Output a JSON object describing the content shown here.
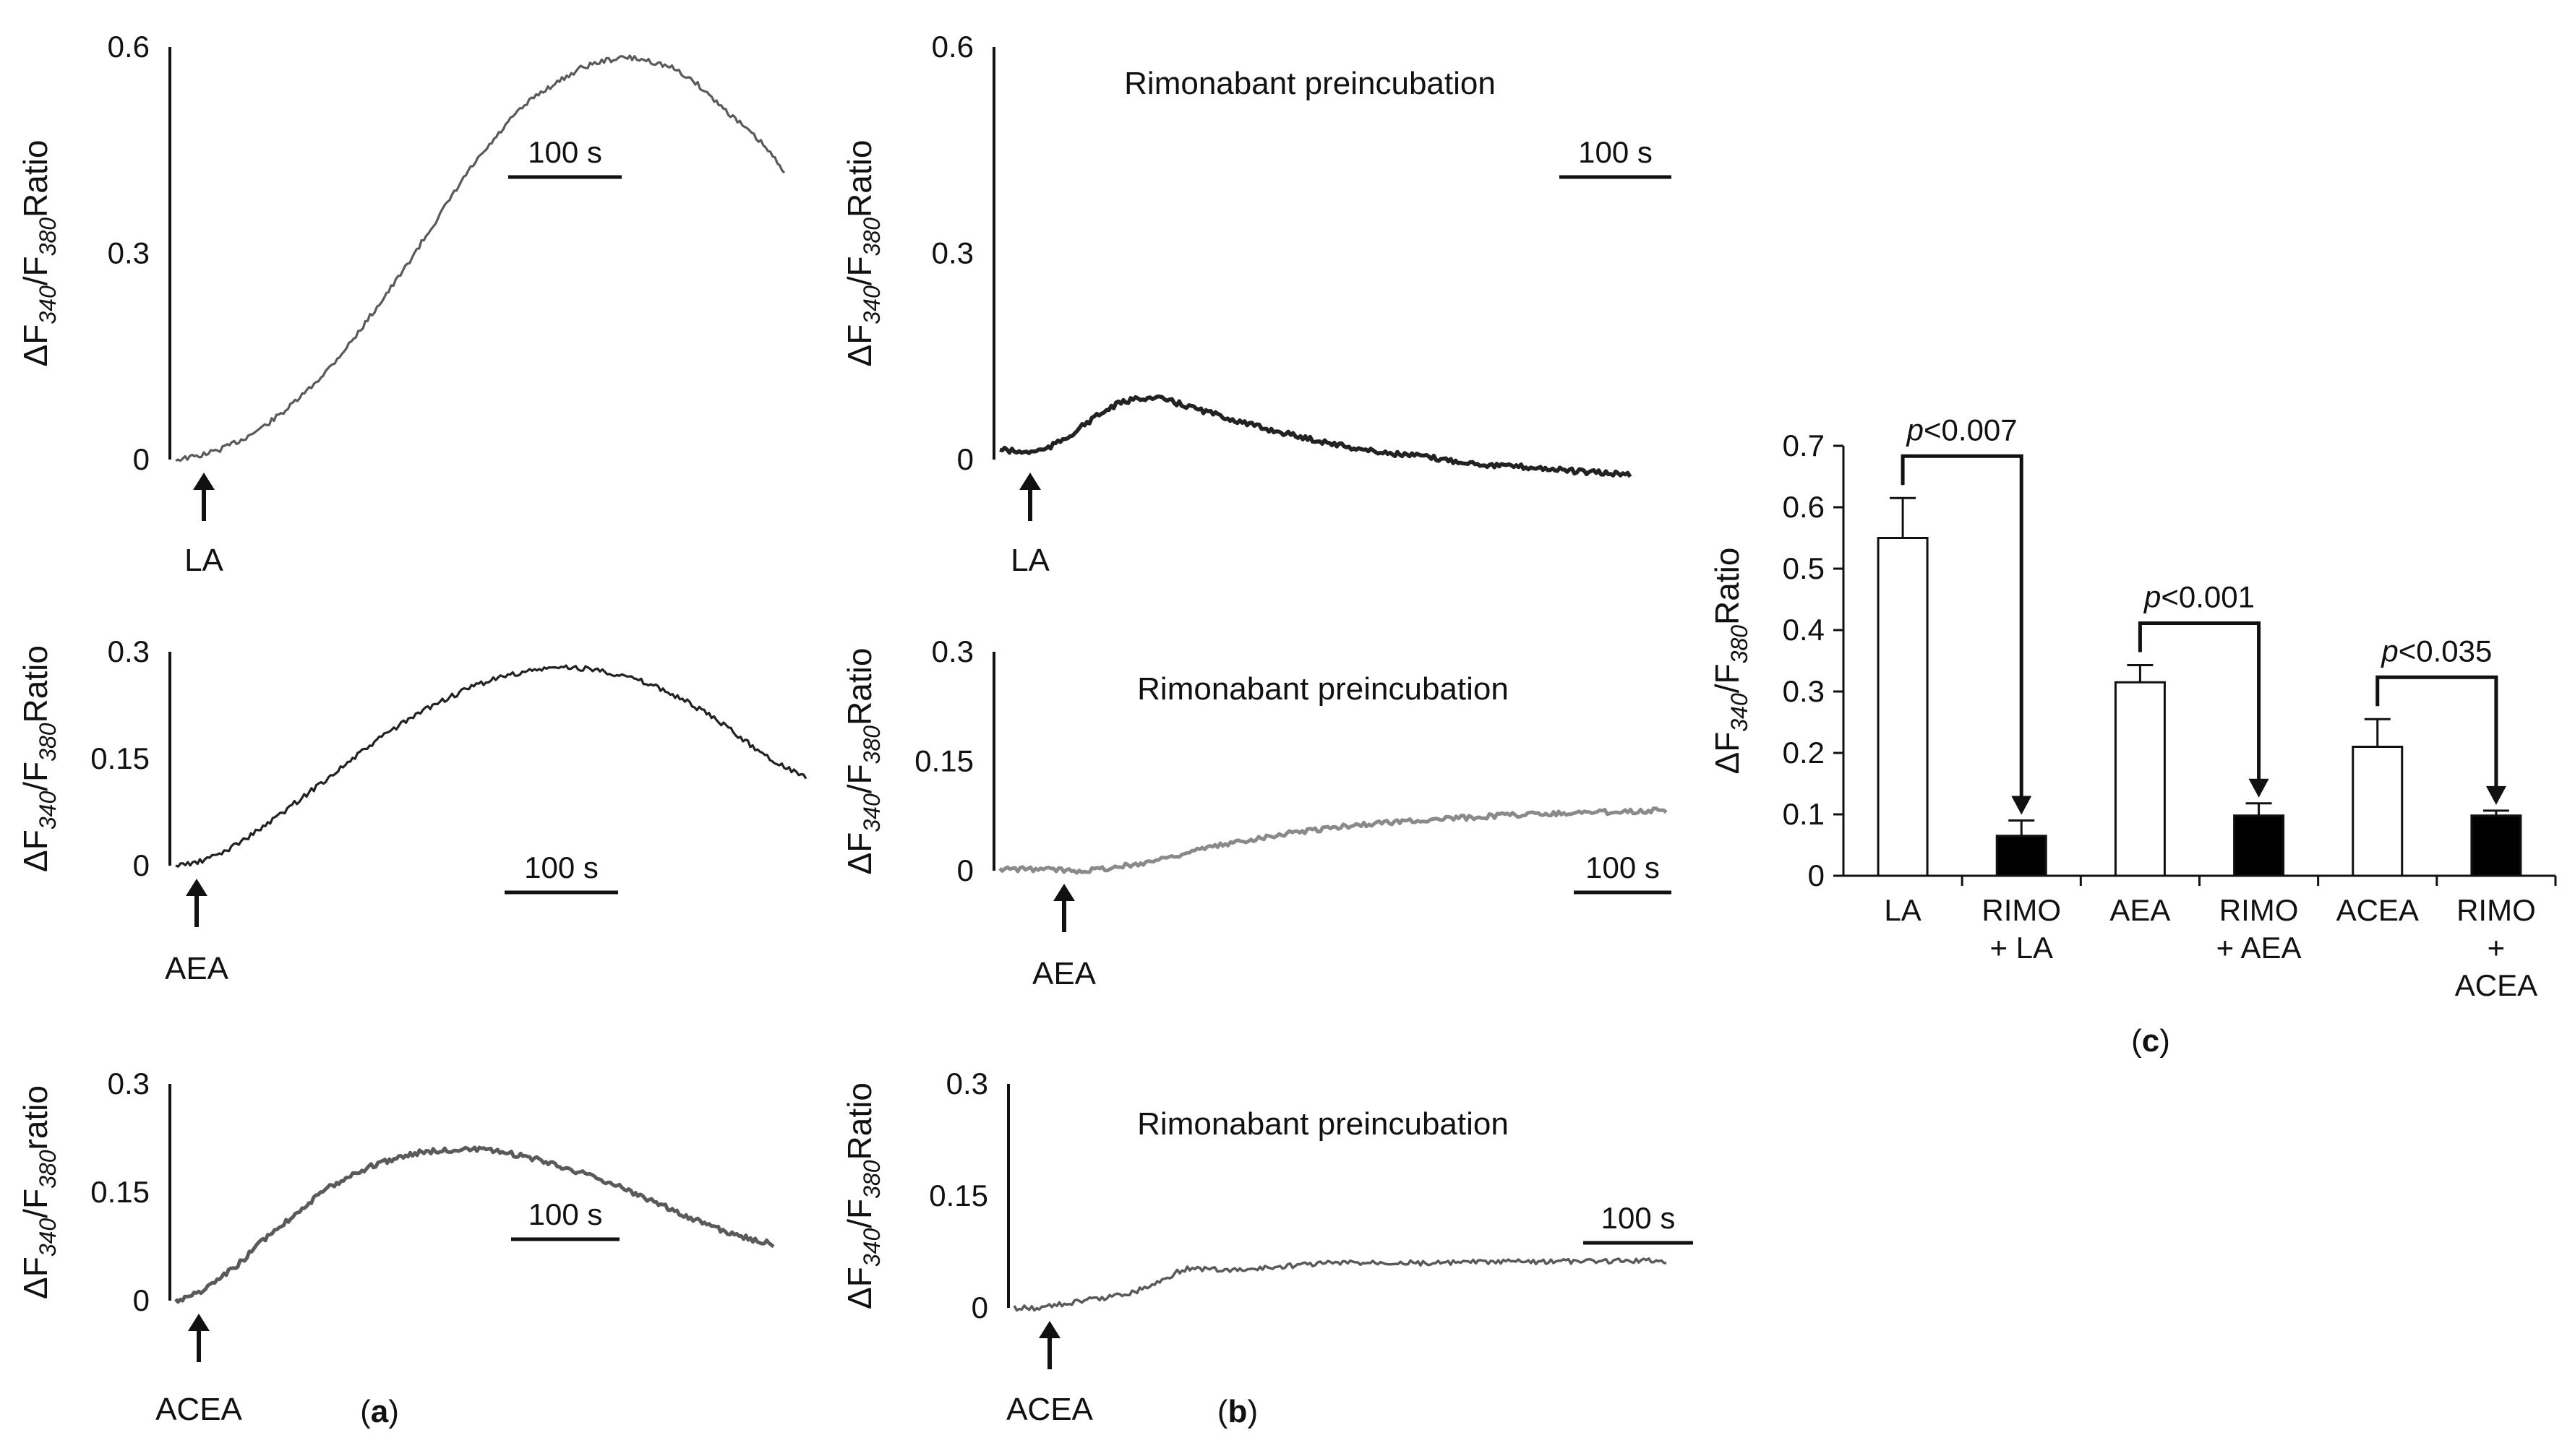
{
  "panels": {
    "a": "a",
    "b": "b",
    "c": "c"
  },
  "colors": {
    "trace_dark": "#222222",
    "trace_mid": "#5a5a5a",
    "trace_light": "#8a8a8a",
    "axis": "#111111",
    "bar_open": "#ffffff",
    "bar_filled": "#000000"
  },
  "chart_data": [
    {
      "id": "a1",
      "type": "line",
      "panel": "a",
      "ylabel": "ΔF340/F380Ratio",
      "ylabel_main": "ΔF",
      "ylabel_sub1": "340",
      "ylabel_slash": "/F",
      "ylabel_sub2": "380",
      "ylabel_tail": "Ratio",
      "yticks": [
        "0",
        "0.3",
        "0.6"
      ],
      "ylim": [
        0,
        0.6
      ],
      "scalebar": "100 s",
      "stimulus": "LA",
      "title": "",
      "x_seconds": [
        0,
        20,
        40,
        60,
        80,
        100,
        120,
        140,
        160,
        180,
        200,
        220,
        240,
        260,
        280,
        300,
        320,
        340,
        360,
        380,
        400,
        420,
        440,
        460,
        480,
        500,
        520,
        540
      ],
      "values": [
        0.0,
        0.005,
        0.015,
        0.03,
        0.05,
        0.075,
        0.105,
        0.14,
        0.18,
        0.225,
        0.27,
        0.32,
        0.37,
        0.42,
        0.46,
        0.5,
        0.53,
        0.55,
        0.57,
        0.58,
        0.585,
        0.58,
        0.57,
        0.55,
        0.52,
        0.49,
        0.46,
        0.42
      ]
    },
    {
      "id": "b1",
      "type": "line",
      "panel": "b",
      "ylabel": "ΔF340/F380Ratio",
      "ylabel_main": "ΔF",
      "ylabel_sub1": "340",
      "ylabel_slash": "/F",
      "ylabel_sub2": "380",
      "ylabel_tail": "Ratio",
      "yticks": [
        "0",
        "0.3",
        "0.6"
      ],
      "ylim": [
        0,
        0.6
      ],
      "scalebar": "100 s",
      "stimulus": "LA",
      "title": "Rimonabant preincubation",
      "x_seconds": [
        0,
        20,
        40,
        60,
        80,
        100,
        120,
        140,
        160,
        180,
        200,
        220,
        240,
        260,
        280,
        300,
        320,
        340,
        360,
        380,
        400,
        420,
        440,
        460,
        480,
        500,
        520,
        540
      ],
      "values": [
        0.015,
        0.01,
        0.015,
        0.035,
        0.06,
        0.08,
        0.09,
        0.088,
        0.078,
        0.068,
        0.058,
        0.048,
        0.04,
        0.032,
        0.025,
        0.018,
        0.012,
        0.008,
        0.005,
        0.0,
        -0.004,
        -0.008,
        -0.01,
        -0.012,
        -0.015,
        -0.018,
        -0.02,
        -0.022
      ]
    },
    {
      "id": "a2",
      "type": "line",
      "panel": "a",
      "ylabel": "ΔF340/F380Ratio",
      "ylabel_main": "ΔF",
      "ylabel_sub1": "340",
      "ylabel_slash": "/F",
      "ylabel_sub2": "380",
      "ylabel_tail": "Ratio",
      "yticks": [
        "0",
        "0.15",
        "0.3"
      ],
      "ylim": [
        0,
        0.3
      ],
      "scalebar": "100 s",
      "stimulus": "AEA",
      "title": "",
      "x_seconds": [
        0,
        20,
        40,
        60,
        80,
        100,
        120,
        140,
        160,
        180,
        200,
        220,
        240,
        260,
        280,
        300,
        320,
        340,
        360,
        380,
        400,
        420,
        440,
        460,
        480,
        500,
        520,
        540
      ],
      "values": [
        0.0,
        0.005,
        0.018,
        0.038,
        0.06,
        0.085,
        0.11,
        0.135,
        0.16,
        0.185,
        0.205,
        0.225,
        0.24,
        0.255,
        0.265,
        0.272,
        0.277,
        0.278,
        0.275,
        0.268,
        0.258,
        0.245,
        0.228,
        0.208,
        0.185,
        0.16,
        0.14,
        0.125
      ]
    },
    {
      "id": "b2",
      "type": "line",
      "panel": "b",
      "ylabel": "ΔF340/F380Ratio",
      "ylabel_main": "ΔF",
      "ylabel_sub1": "340",
      "ylabel_slash": "/F",
      "ylabel_sub2": "380",
      "ylabel_tail": "Ratio",
      "yticks": [
        "0",
        "0.15",
        "0.3"
      ],
      "ylim": [
        0,
        0.3
      ],
      "scalebar": "100 s",
      "stimulus": "AEA",
      "title": "Rimonabant preincubation",
      "x_seconds": [
        0,
        20,
        40,
        60,
        80,
        100,
        120,
        140,
        160,
        180,
        200,
        220,
        240,
        260,
        280,
        300,
        320,
        340,
        360,
        380,
        400,
        420,
        440,
        460,
        480,
        500,
        520,
        540
      ],
      "values": [
        0.002,
        0.002,
        0.002,
        0.0,
        0.002,
        0.006,
        0.012,
        0.02,
        0.028,
        0.035,
        0.042,
        0.048,
        0.053,
        0.057,
        0.061,
        0.064,
        0.067,
        0.069,
        0.071,
        0.073,
        0.075,
        0.077,
        0.078,
        0.079,
        0.08,
        0.081,
        0.082,
        0.083
      ]
    },
    {
      "id": "a3",
      "type": "line",
      "panel": "a",
      "ylabel": "ΔF340/F380ratio",
      "ylabel_main": "ΔF",
      "ylabel_sub1": "340",
      "ylabel_slash": "/F",
      "ylabel_sub2": "380",
      "ylabel_tail": "ratio",
      "yticks": [
        "0",
        "0.15",
        "0.3"
      ],
      "ylim": [
        0,
        0.3
      ],
      "scalebar": "100 s",
      "stimulus": "ACEA",
      "title": "",
      "x_seconds": [
        0,
        20,
        40,
        60,
        80,
        100,
        120,
        140,
        160,
        180,
        200,
        220,
        240,
        260,
        280,
        300,
        320,
        340,
        360,
        380,
        400,
        420,
        440,
        460,
        480,
        500,
        520,
        540
      ],
      "values": [
        0.0,
        0.01,
        0.03,
        0.055,
        0.085,
        0.11,
        0.135,
        0.158,
        0.175,
        0.188,
        0.198,
        0.205,
        0.208,
        0.21,
        0.208,
        0.204,
        0.198,
        0.19,
        0.18,
        0.17,
        0.158,
        0.145,
        0.132,
        0.118,
        0.105,
        0.094,
        0.085,
        0.078
      ]
    },
    {
      "id": "b3",
      "type": "line",
      "panel": "b",
      "ylabel": "ΔF340/F380Ratio",
      "ylabel_main": "ΔF",
      "ylabel_sub1": "340",
      "ylabel_slash": "/F",
      "ylabel_sub2": "380",
      "ylabel_tail": "Ratio",
      "yticks": [
        "0",
        "0.15",
        "0.3"
      ],
      "ylim": [
        0,
        0.3
      ],
      "scalebar": "100 s",
      "stimulus": "ACEA",
      "title": "Rimonabant preincubation",
      "x_seconds": [
        0,
        20,
        40,
        60,
        80,
        100,
        120,
        140,
        160,
        180,
        200,
        220,
        240,
        260,
        280,
        300,
        320,
        340,
        360,
        380,
        400,
        420,
        440,
        460,
        480,
        500,
        520,
        540
      ],
      "values": [
        0.0,
        0.0,
        0.005,
        0.01,
        0.015,
        0.022,
        0.035,
        0.052,
        0.052,
        0.05,
        0.052,
        0.055,
        0.058,
        0.06,
        0.06,
        0.061,
        0.061,
        0.06,
        0.06,
        0.061,
        0.061,
        0.062,
        0.062,
        0.062,
        0.062,
        0.063,
        0.063,
        0.063
      ]
    },
    {
      "id": "c",
      "type": "bar",
      "panel": "c",
      "ylabel": "ΔF340/F380Ratio",
      "ylabel_main": "ΔF",
      "ylabel_sub1": "340",
      "ylabel_slash": "/F",
      "ylabel_sub2": "380",
      "ylabel_tail": "Ratio",
      "ylim": [
        0,
        0.7
      ],
      "yticks": [
        "0",
        "0.1",
        "0.2",
        "0.3",
        "0.4",
        "0.5",
        "0.6",
        "0.7"
      ],
      "categories": [
        {
          "line1": "LA",
          "line2": "",
          "line3": ""
        },
        {
          "line1": "RIMO",
          "line2": "+ LA",
          "line3": ""
        },
        {
          "line1": "AEA",
          "line2": "",
          "line3": ""
        },
        {
          "line1": "RIMO",
          "line2": "+ AEA",
          "line3": ""
        },
        {
          "line1": "ACEA",
          "line2": "",
          "line3": ""
        },
        {
          "line1": "RIMO",
          "line2": "+",
          "line3": "ACEA"
        }
      ],
      "values": [
        0.55,
        0.065,
        0.315,
        0.098,
        0.21,
        0.098
      ],
      "errors": [
        0.065,
        0.025,
        0.028,
        0.02,
        0.045,
        0.008
      ],
      "fills": [
        "open",
        "filled",
        "open",
        "filled",
        "open",
        "filled"
      ],
      "comparisons": [
        {
          "from": 0,
          "to": 1,
          "p_italic": "p",
          "p_rest": "<0.007"
        },
        {
          "from": 2,
          "to": 3,
          "p_italic": "p",
          "p_rest": "<0.001"
        },
        {
          "from": 4,
          "to": 5,
          "p_italic": "p",
          "p_rest": "<0.035"
        }
      ]
    }
  ]
}
